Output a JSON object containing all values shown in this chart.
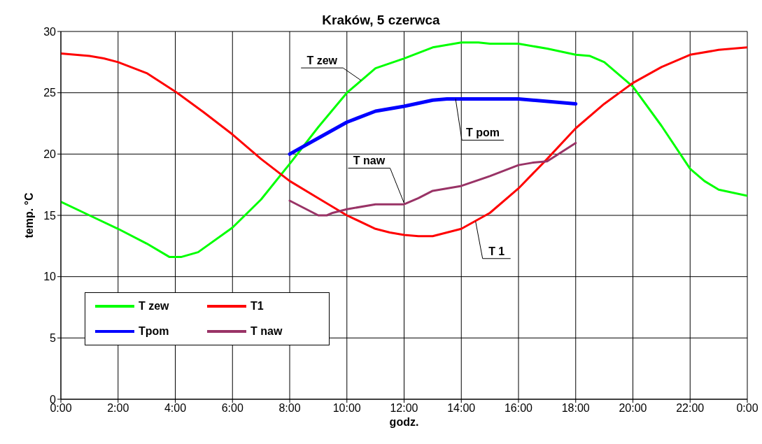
{
  "chart_data": {
    "type": "line",
    "title": "Kraków, 5 czerwca",
    "xlabel": "godz.",
    "ylabel": "temp. °C",
    "xlim": [
      0,
      24
    ],
    "xticks": [
      {
        "value": 0,
        "label": "0:00"
      },
      {
        "value": 2,
        "label": "2:00"
      },
      {
        "value": 4,
        "label": "4:00"
      },
      {
        "value": 6,
        "label": "6:00"
      },
      {
        "value": 8,
        "label": "8:00"
      },
      {
        "value": 10,
        "label": "10:00"
      },
      {
        "value": 12,
        "label": "12:00"
      },
      {
        "value": 14,
        "label": "14:00"
      },
      {
        "value": 16,
        "label": "16:00"
      },
      {
        "value": 18,
        "label": "18:00"
      },
      {
        "value": 20,
        "label": "20:00"
      },
      {
        "value": 22,
        "label": "22:00"
      },
      {
        "value": 24,
        "label": "0:00"
      }
    ],
    "ylim": [
      0,
      30
    ],
    "yticks": [
      0,
      5,
      10,
      15,
      20,
      25,
      30
    ],
    "grid": true,
    "legend": "bottom left",
    "marker": "none",
    "line_style": "solid",
    "series": [
      {
        "name": "T zew",
        "color": "#00ff00",
        "x": [
          0,
          1,
          2,
          3,
          3.8,
          4.2,
          4.8,
          6,
          7,
          8,
          9,
          10,
          11,
          12,
          13,
          14,
          14.6,
          15,
          16,
          17,
          18,
          18.5,
          19,
          20,
          21,
          22,
          22.5,
          23,
          24
        ],
        "values": [
          16.1,
          15.0,
          13.9,
          12.7,
          11.6,
          11.6,
          12.0,
          14.0,
          16.3,
          19.2,
          22.2,
          25.0,
          27.0,
          27.8,
          28.7,
          29.1,
          29.1,
          29.0,
          29.0,
          28.6,
          28.1,
          28.0,
          27.5,
          25.5,
          22.3,
          18.8,
          17.8,
          17.1,
          16.6
        ]
      },
      {
        "name": "T1",
        "color": "#ff0000",
        "x": [
          0,
          1,
          1.5,
          2,
          3,
          4,
          5,
          6,
          7,
          8,
          9,
          10,
          11,
          11.5,
          12,
          12.5,
          13,
          14,
          15,
          16,
          17,
          18,
          19,
          20,
          21,
          22,
          23,
          24
        ],
        "values": [
          28.2,
          28.0,
          27.8,
          27.5,
          26.6,
          25.1,
          23.4,
          21.6,
          19.6,
          17.8,
          16.4,
          15.0,
          13.9,
          13.6,
          13.4,
          13.3,
          13.3,
          13.9,
          15.2,
          17.2,
          19.6,
          22.1,
          24.1,
          25.8,
          27.1,
          28.1,
          28.5,
          28.7
        ]
      },
      {
        "name": "Tpom",
        "color": "#0000ff",
        "x": [
          8,
          9,
          10,
          11,
          12,
          13,
          13.5,
          14,
          15,
          16,
          18
        ],
        "values": [
          20.0,
          21.3,
          22.6,
          23.5,
          23.9,
          24.4,
          24.5,
          24.5,
          24.5,
          24.5,
          24.1
        ]
      },
      {
        "name": "T naw",
        "color": "#993366",
        "x": [
          8,
          8.5,
          9,
          9.3,
          9.5,
          10,
          11,
          12,
          12.5,
          13,
          14,
          15,
          16,
          16.5,
          17,
          18
        ],
        "values": [
          16.2,
          15.6,
          15.0,
          15.0,
          15.2,
          15.5,
          15.9,
          15.9,
          16.4,
          17.0,
          17.4,
          18.2,
          19.1,
          19.3,
          19.4,
          20.9
        ]
      }
    ],
    "annotations": [
      {
        "text": "T zew",
        "x": 10.5,
        "y": 26
      },
      {
        "text": "T pom",
        "x": 13.8,
        "y": 24.5
      },
      {
        "text": "T naw",
        "x": 12,
        "y": 16
      },
      {
        "text": "T 1",
        "x": 14.5,
        "y": 14.5
      }
    ]
  }
}
